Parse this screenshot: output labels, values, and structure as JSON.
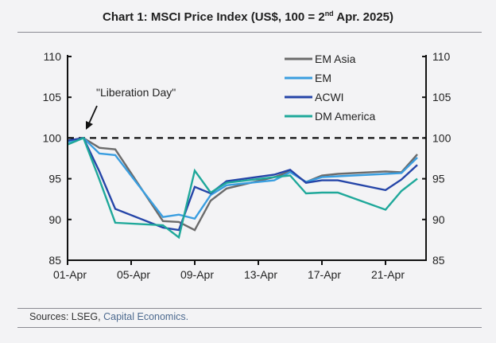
{
  "title_prefix": "Chart 1: MSCI Price Index (US$, 100 = 2",
  "title_sup": "nd",
  "title_suffix": " Apr. 2025)",
  "sources_prefix": "Sources: LSEG, ",
  "sources_link": "Capital Economics.",
  "chart_data": {
    "type": "line",
    "title": "Chart 1: MSCI Price Index (US$, 100 = 2nd Apr. 2025)",
    "xlabel": "",
    "ylabel": "",
    "ylim": [
      85,
      110
    ],
    "yticks": [
      85,
      90,
      95,
      100,
      105,
      110
    ],
    "xticks": [
      {
        "day": 1,
        "label": "01-Apr"
      },
      {
        "day": 5,
        "label": "05-Apr"
      },
      {
        "day": 9,
        "label": "09-Apr"
      },
      {
        "day": 13,
        "label": "13-Apr"
      },
      {
        "day": 17,
        "label": "17-Apr"
      },
      {
        "day": 21,
        "label": "21-Apr"
      }
    ],
    "xlim_days": [
      1,
      23.55
    ],
    "reference_line": {
      "value": 100,
      "style": "dashed"
    },
    "annotation": {
      "text": "\"Liberation Day\"",
      "points_to_day": 2
    },
    "dual_axis": true,
    "legend_position": "top-right",
    "x_days": [
      1,
      2,
      3,
      4,
      7,
      8,
      9,
      10,
      11,
      14,
      15,
      16,
      17,
      18,
      21,
      22,
      23
    ],
    "series": [
      {
        "name": "EM Asia",
        "color": "#6b6b6b",
        "values": [
          99.6,
          100,
          98.8,
          98.6,
          89.8,
          89.7,
          88.7,
          92.3,
          93.8,
          95.2,
          95.9,
          94.6,
          95.4,
          95.6,
          95.9,
          95.8,
          98.0
        ]
      },
      {
        "name": "EM",
        "color": "#3a9ee0",
        "values": [
          99.5,
          100,
          98.1,
          97.9,
          90.3,
          90.6,
          90.1,
          93.0,
          94.2,
          94.8,
          95.8,
          94.6,
          95.2,
          95.3,
          95.6,
          95.7,
          97.6
        ]
      },
      {
        "name": "ACWI",
        "color": "#2545a8",
        "values": [
          99.7,
          100,
          95.9,
          91.3,
          89.0,
          88.7,
          94.0,
          93.2,
          94.7,
          95.5,
          96.1,
          94.5,
          94.8,
          94.8,
          93.6,
          94.9,
          96.7
        ]
      },
      {
        "name": "DM America",
        "color": "#1fa89a",
        "values": [
          99.2,
          100,
          94.9,
          89.6,
          89.3,
          87.8,
          96.0,
          93.3,
          94.5,
          95.2,
          95.4,
          93.2,
          93.3,
          93.3,
          91.2,
          93.5,
          95.0
        ]
      }
    ]
  }
}
